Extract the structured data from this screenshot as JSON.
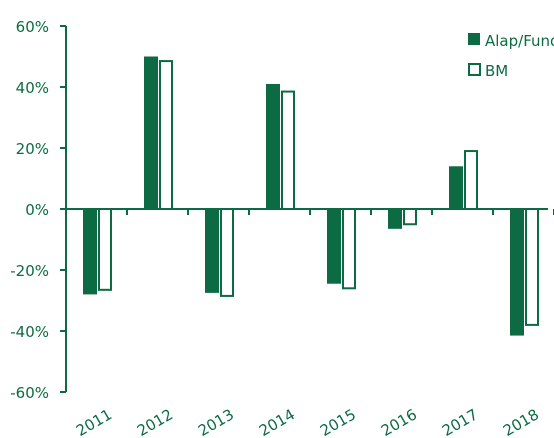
{
  "chart_data": {
    "type": "bar",
    "categories": [
      "2011",
      "2012",
      "2013",
      "2014",
      "2015",
      "2016",
      "2017",
      "2018"
    ],
    "series": [
      {
        "name": "Alap/Fund",
        "values": [
          -28,
          50,
          -27.5,
          41,
          -24.5,
          -6.5,
          14,
          -41.5
        ],
        "style": "filled"
      },
      {
        "name": "BM",
        "values": [
          -26.5,
          48.5,
          -28.5,
          38.5,
          -26,
          -5,
          19,
          -38
        ],
        "style": "outline"
      }
    ],
    "ylim": [
      -60,
      60
    ],
    "yticks": [
      -60,
      -40,
      -20,
      0,
      20,
      40,
      60
    ],
    "ytick_labels": [
      "-60%",
      "-40%",
      "-20%",
      "0%",
      "20%",
      "40%",
      "60%"
    ],
    "title": "",
    "xlabel": "",
    "ylabel": "",
    "grid": false,
    "legend_position": "top-right",
    "colors": {
      "primary": "#0c6b43",
      "background": "#ffffff"
    }
  }
}
